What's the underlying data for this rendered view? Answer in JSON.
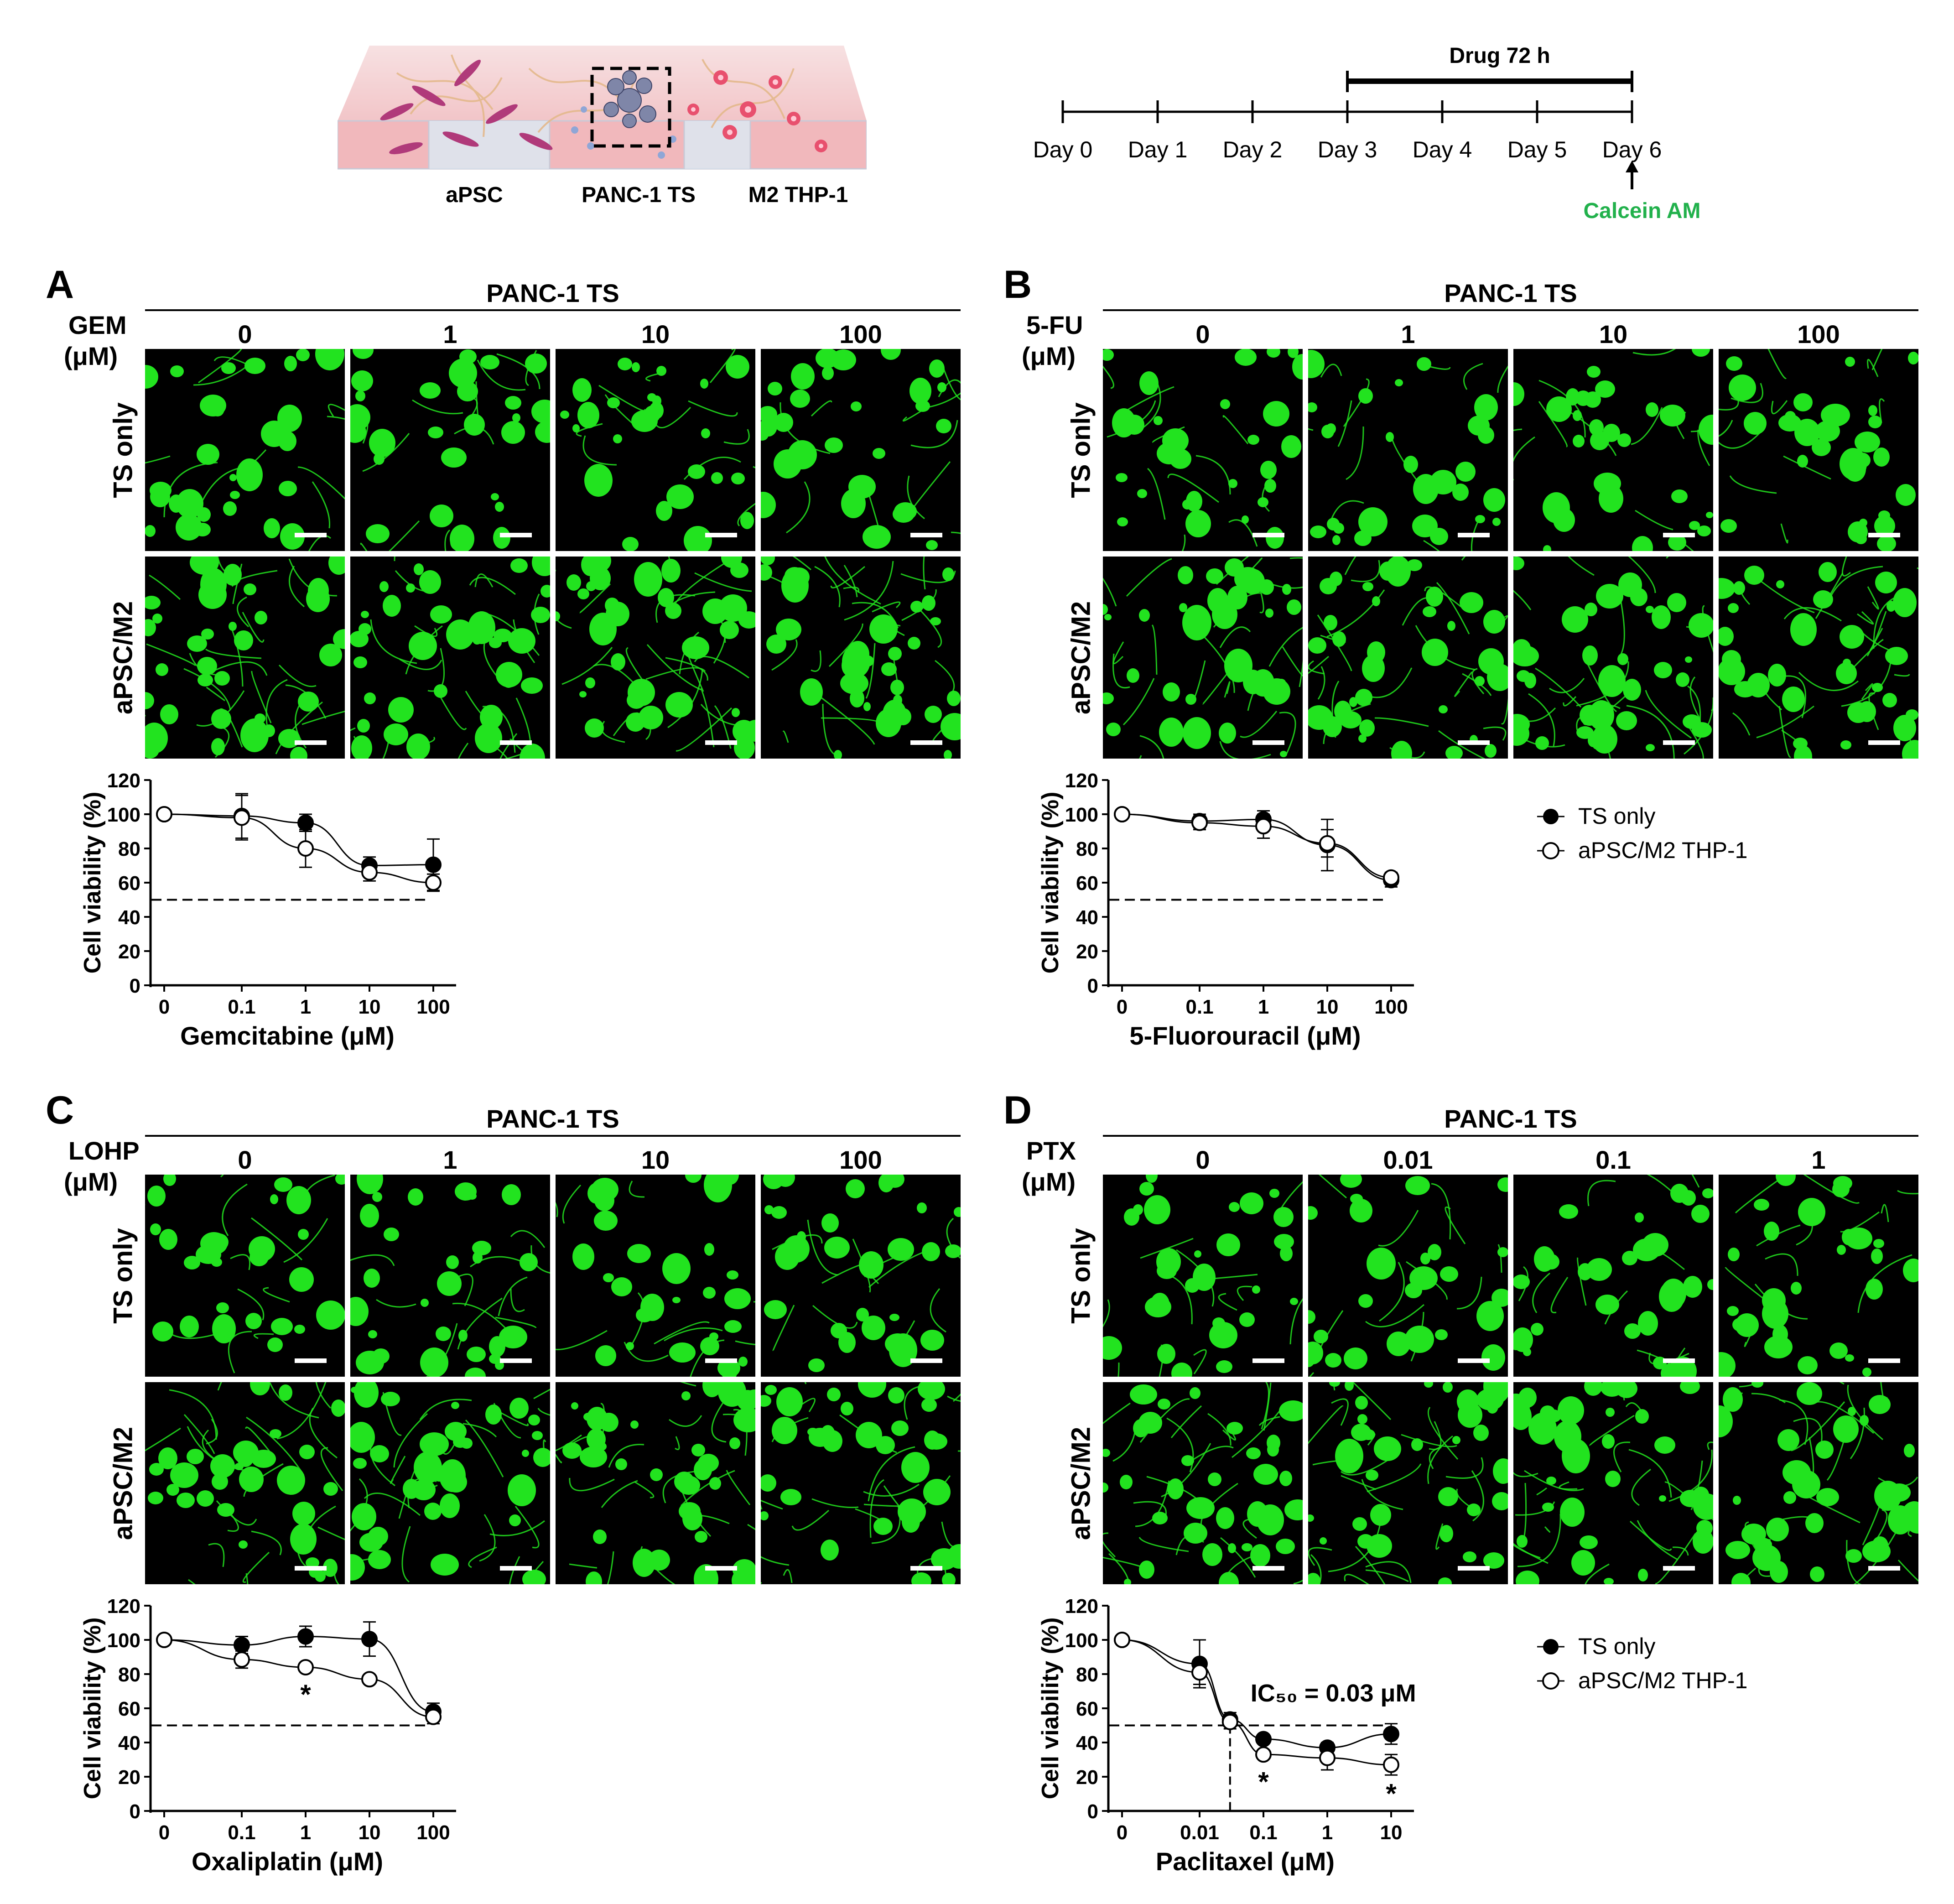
{
  "schematic": {
    "compartments": [
      "aPSC",
      "PANC-1 TS",
      "M2 THP-1"
    ]
  },
  "timeline": {
    "days": [
      "Day 0",
      "Day 1",
      "Day 2",
      "Day 3",
      "Day 4",
      "Day 5",
      "Day 6"
    ],
    "drug_label": "Drug 72 h",
    "stain_label": "Calcein AM",
    "stain_color": "#22b14c"
  },
  "colors": {
    "fluor": "#22e31f",
    "scale": "#ffffff"
  },
  "panels": [
    {
      "letter": "A",
      "header": "PANC-1 TS",
      "drug_line1": "GEM",
      "drug_line2": "(μM)",
      "doses": [
        "0",
        "1",
        "10",
        "100"
      ],
      "rows": [
        "TS only",
        "aPSC/M2"
      ]
    },
    {
      "letter": "B",
      "header": "PANC-1 TS",
      "drug_line1": "5-FU",
      "drug_line2": "(μM)",
      "doses": [
        "0",
        "1",
        "10",
        "100"
      ],
      "rows": [
        "TS only",
        "aPSC/M2"
      ]
    },
    {
      "letter": "C",
      "header": "PANC-1 TS",
      "drug_line1": "LOHP",
      "drug_line2": "(μM)",
      "doses": [
        "0",
        "1",
        "10",
        "100"
      ],
      "rows": [
        "TS only",
        "aPSC/M2"
      ]
    },
    {
      "letter": "D",
      "header": "PANC-1 TS",
      "drug_line1": "PTX",
      "drug_line2": "(μM)",
      "doses": [
        "0",
        "0.01",
        "0.1",
        "1"
      ],
      "rows": [
        "TS only",
        "aPSC/M2"
      ]
    }
  ],
  "legend": {
    "entries": [
      "TS only",
      "aPSC/M2 THP-1"
    ]
  },
  "chart_data": [
    {
      "type": "scatter",
      "ylabel": "Cell viability (%)",
      "xlabel": "Gemcitabine (μM)",
      "x_ticks": [
        "0",
        "0.1",
        "1",
        "10",
        "100"
      ],
      "x": [
        0,
        0.1,
        1,
        10,
        100
      ],
      "ylim": [
        0,
        120
      ],
      "y_ticks": [
        0,
        20,
        40,
        60,
        80,
        100,
        120
      ],
      "reference_line_y": 50,
      "series": [
        {
          "name": "TS only",
          "marker": "filled-circle",
          "y": [
            100,
            99,
            95,
            70,
            70.5
          ],
          "err": [
            0,
            13,
            5,
            5,
            15
          ]
        },
        {
          "name": "aPSC/M2 THP-1",
          "marker": "open-circle",
          "y": [
            100,
            98,
            80,
            66,
            60
          ],
          "err": [
            0,
            13,
            11,
            5,
            5
          ]
        }
      ],
      "annotations": []
    },
    {
      "type": "scatter",
      "ylabel": "Cell viability (%)",
      "xlabel": "5-Fluorouracil (μM)",
      "x_ticks": [
        "0",
        "0.1",
        "1",
        "10",
        "100"
      ],
      "x": [
        0,
        0.1,
        1,
        10,
        100
      ],
      "ylim": [
        0,
        120
      ],
      "y_ticks": [
        0,
        20,
        40,
        60,
        80,
        100,
        120
      ],
      "reference_line_y": 50,
      "series": [
        {
          "name": "TS only",
          "marker": "filled-circle",
          "y": [
            100,
            96,
            97,
            82,
            61.5
          ],
          "err": [
            0,
            4,
            5,
            15,
            4
          ]
        },
        {
          "name": "aPSC/M2 THP-1",
          "marker": "open-circle",
          "y": [
            100,
            95,
            93,
            83,
            63
          ],
          "err": [
            0,
            4,
            7,
            8,
            3
          ]
        }
      ],
      "annotations": []
    },
    {
      "type": "scatter",
      "ylabel": "Cell viability (%)",
      "xlabel": "Oxaliplatin (μM)",
      "x_ticks": [
        "0",
        "0.1",
        "1",
        "10",
        "100"
      ],
      "x": [
        0,
        0.1,
        1,
        10,
        100
      ],
      "ylim": [
        0,
        120
      ],
      "y_ticks": [
        0,
        20,
        40,
        60,
        80,
        100,
        120
      ],
      "reference_line_y": 50,
      "series": [
        {
          "name": "TS only",
          "marker": "filled-circle",
          "y": [
            100,
            97,
            102,
            100.5,
            58
          ],
          "err": [
            0,
            5,
            6,
            10,
            5
          ]
        },
        {
          "name": "aPSC/M2 THP-1",
          "marker": "open-circle",
          "y": [
            100,
            88.5,
            84,
            77,
            55
          ],
          "err": [
            0,
            5,
            2,
            2,
            4
          ]
        }
      ],
      "annotations": [
        {
          "text": "*",
          "x": 1,
          "y": 68
        }
      ]
    },
    {
      "type": "scatter",
      "ylabel": "Cell viability (%)",
      "xlabel": "Paclitaxel (μM)",
      "x_ticks": [
        "0",
        "0.01",
        "0.1",
        "1",
        "10"
      ],
      "x": [
        0,
        0.01,
        0.1,
        1,
        10
      ],
      "ylim": [
        0,
        120
      ],
      "y_ticks": [
        0,
        20,
        40,
        60,
        80,
        100,
        120
      ],
      "reference_line_y": 50,
      "ic50": {
        "text": "IC₅₀ = 0.03 μM",
        "x": 0.03
      },
      "series": [
        {
          "name": "TS only",
          "marker": "filled-circle",
          "y": [
            100,
            86,
            53.5,
            42,
            37,
            45
          ],
          "x": [
            0,
            0.01,
            0.03,
            0.1,
            1,
            10
          ],
          "err": [
            0,
            14,
            4,
            2,
            3,
            6
          ]
        },
        {
          "name": "aPSC/M2 THP-1",
          "marker": "open-circle",
          "y": [
            100,
            81,
            52,
            33,
            31,
            27
          ],
          "x": [
            0,
            0.01,
            0.03,
            0.1,
            1,
            10
          ],
          "err": [
            0,
            7,
            4,
            2,
            7,
            6
          ]
        }
      ],
      "annotations": [
        {
          "text": "*",
          "x": 0.1,
          "y": 17
        },
        {
          "text": "*",
          "x": 10,
          "y": 10
        }
      ]
    }
  ]
}
